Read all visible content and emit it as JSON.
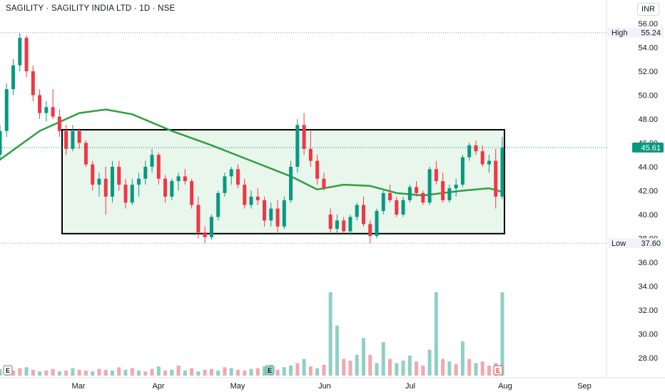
{
  "header": {
    "title": "SAGILITY · SAGILITY INDIA LTD · 1D · NSE",
    "currency": "INR"
  },
  "colors": {
    "up": "#089981",
    "down": "#f23645",
    "ma": "#2ea043",
    "range_fill": "#e9f6ec",
    "range_border": "#000000",
    "vol_up": "#8fd0c6",
    "vol_down": "#f3a7ad",
    "last_price_bg": "#089981"
  },
  "chart_data": {
    "type": "candlestick",
    "ylim": [
      26.8,
      56.6
    ],
    "y_ticks": [
      "56.00",
      "54.00",
      "52.00",
      "50.00",
      "48.00",
      "46.00",
      "44.00",
      "42.00",
      "40.00",
      "38.00",
      "36.00",
      "34.00",
      "32.00",
      "30.00",
      "28.00"
    ],
    "x_labels": [
      "Mar",
      "Apr",
      "May",
      "Jun",
      "Jul",
      "Aug",
      "Sep"
    ],
    "high": {
      "label": "High",
      "value": "55.24"
    },
    "low": {
      "label": "Low",
      "value": "37.60"
    },
    "last_price": "45.61",
    "range_box": {
      "low": 38.4,
      "high": 47.1
    },
    "events": [
      "E",
      "E",
      "E"
    ],
    "candles": [
      [
        45.0,
        47.5,
        44.5,
        47.0
      ],
      [
        47.0,
        51.0,
        46.5,
        50.5
      ],
      [
        50.5,
        53.0,
        50.0,
        52.5
      ],
      [
        52.5,
        55.2,
        52.0,
        54.8
      ],
      [
        54.8,
        55.0,
        51.5,
        52.0
      ],
      [
        52.0,
        52.5,
        49.5,
        50.0
      ],
      [
        50.0,
        50.5,
        48.0,
        48.5
      ],
      [
        48.5,
        49.5,
        47.8,
        49.0
      ],
      [
        49.0,
        50.5,
        48.0,
        48.2
      ],
      [
        48.2,
        48.8,
        46.5,
        47.0
      ],
      [
        47.0,
        47.5,
        45.0,
        45.5
      ],
      [
        45.5,
        47.5,
        45.3,
        47.0
      ],
      [
        47.0,
        47.2,
        45.5,
        46.0
      ],
      [
        46.0,
        46.2,
        44.0,
        44.2
      ],
      [
        44.2,
        44.5,
        42.0,
        42.5
      ],
      [
        42.5,
        43.5,
        41.5,
        43.0
      ],
      [
        43.0,
        44.0,
        40.0,
        41.5
      ],
      [
        41.5,
        44.5,
        41.0,
        44.0
      ],
      [
        44.0,
        44.5,
        42.0,
        42.5
      ],
      [
        42.5,
        43.0,
        40.5,
        41.0
      ],
      [
        41.0,
        43.0,
        40.8,
        42.5
      ],
      [
        42.5,
        43.5,
        41.5,
        43.0
      ],
      [
        43.0,
        44.5,
        42.5,
        44.0
      ],
      [
        44.0,
        45.5,
        43.5,
        45.0
      ],
      [
        45.0,
        45.2,
        42.5,
        43.0
      ],
      [
        43.0,
        43.3,
        41.0,
        41.5
      ],
      [
        41.5,
        43.0,
        41.2,
        42.8
      ],
      [
        42.8,
        43.5,
        42.0,
        43.2
      ],
      [
        43.2,
        43.8,
        42.5,
        42.8
      ],
      [
        42.8,
        43.0,
        40.5,
        40.8
      ],
      [
        40.8,
        41.5,
        38.0,
        38.5
      ],
      [
        38.5,
        39.0,
        37.6,
        38.1
      ],
      [
        38.1,
        40.0,
        37.9,
        39.8
      ],
      [
        39.8,
        42.0,
        39.5,
        41.8
      ],
      [
        41.8,
        43.5,
        41.5,
        43.2
      ],
      [
        43.2,
        44.0,
        42.5,
        43.8
      ],
      [
        43.8,
        44.2,
        42.2,
        42.5
      ],
      [
        42.5,
        43.0,
        40.5,
        40.8
      ],
      [
        40.8,
        42.0,
        40.5,
        41.5
      ],
      [
        41.5,
        42.2,
        40.8,
        41.2
      ],
      [
        41.2,
        41.5,
        39.0,
        39.5
      ],
      [
        39.5,
        41.0,
        39.0,
        40.5
      ],
      [
        40.5,
        41.2,
        38.5,
        39.0
      ],
      [
        39.0,
        41.5,
        38.8,
        41.2
      ],
      [
        41.2,
        44.5,
        41.0,
        44.0
      ],
      [
        44.0,
        48.0,
        43.5,
        47.5
      ],
      [
        47.5,
        48.5,
        45.0,
        45.5
      ],
      [
        45.5,
        47.0,
        44.0,
        44.5
      ],
      [
        44.5,
        45.0,
        42.5,
        43.0
      ],
      [
        43.0,
        43.5,
        42.0,
        42.2
      ],
      [
        40.0,
        40.5,
        38.5,
        38.8
      ],
      [
        38.8,
        40.0,
        38.5,
        39.5
      ],
      [
        39.5,
        39.8,
        38.4,
        38.6
      ],
      [
        38.6,
        40.0,
        38.3,
        39.8
      ],
      [
        39.8,
        41.0,
        39.5,
        40.8
      ],
      [
        40.8,
        41.5,
        39.0,
        39.2
      ],
      [
        39.2,
        39.5,
        37.6,
        38.2
      ],
      [
        38.2,
        40.5,
        38.0,
        40.3
      ],
      [
        40.3,
        42.0,
        40.0,
        41.8
      ],
      [
        41.8,
        42.5,
        41.0,
        41.2
      ],
      [
        41.2,
        41.5,
        39.8,
        40.0
      ],
      [
        40.0,
        41.5,
        39.8,
        41.2
      ],
      [
        41.2,
        42.5,
        41.0,
        42.3
      ],
      [
        42.3,
        42.8,
        41.5,
        41.8
      ],
      [
        41.8,
        42.0,
        40.8,
        41.0
      ],
      [
        41.0,
        44.0,
        40.8,
        43.8
      ],
      [
        43.8,
        44.5,
        42.5,
        42.8
      ],
      [
        42.8,
        43.5,
        41.0,
        41.2
      ],
      [
        41.2,
        42.5,
        41.0,
        42.2
      ],
      [
        42.2,
        43.0,
        41.5,
        42.5
      ],
      [
        42.5,
        45.0,
        42.3,
        44.8
      ],
      [
        44.8,
        46.0,
        44.5,
        45.8
      ],
      [
        45.8,
        46.2,
        45.0,
        45.3
      ],
      [
        45.3,
        45.8,
        44.0,
        44.2
      ],
      [
        44.2,
        45.0,
        43.5,
        44.5
      ],
      [
        44.5,
        45.5,
        40.5,
        41.5
      ],
      [
        41.5,
        46.5,
        41.3,
        45.6
      ]
    ],
    "volumes": [
      [
        0.8,
        1
      ],
      [
        1.2,
        1
      ],
      [
        0.6,
        0
      ],
      [
        0.9,
        0
      ],
      [
        1.0,
        1
      ],
      [
        0.7,
        0
      ],
      [
        0.5,
        1
      ],
      [
        0.6,
        0
      ],
      [
        0.8,
        0
      ],
      [
        0.5,
        1
      ],
      [
        0.6,
        0
      ],
      [
        0.9,
        1
      ],
      [
        0.7,
        0
      ],
      [
        0.6,
        0
      ],
      [
        0.5,
        1
      ],
      [
        0.8,
        0
      ],
      [
        0.7,
        0
      ],
      [
        0.6,
        1
      ],
      [
        1.0,
        0
      ],
      [
        0.7,
        1
      ],
      [
        0.9,
        0
      ],
      [
        0.6,
        1
      ],
      [
        0.5,
        0
      ],
      [
        0.8,
        0
      ],
      [
        1.1,
        1
      ],
      [
        0.6,
        0
      ],
      [
        0.7,
        1
      ],
      [
        1.2,
        0
      ],
      [
        0.6,
        1
      ],
      [
        0.9,
        0
      ],
      [
        0.5,
        1
      ],
      [
        0.7,
        0
      ],
      [
        0.8,
        0
      ],
      [
        0.6,
        1
      ],
      [
        1.0,
        0
      ],
      [
        0.9,
        1
      ],
      [
        0.7,
        0
      ],
      [
        0.6,
        0
      ],
      [
        0.8,
        1
      ],
      [
        0.9,
        0
      ],
      [
        1.1,
        1
      ],
      [
        1.3,
        0
      ],
      [
        0.7,
        0
      ],
      [
        1.0,
        1
      ],
      [
        1.2,
        1
      ],
      [
        1.5,
        0
      ],
      [
        2.0,
        1
      ],
      [
        1.1,
        0
      ],
      [
        0.9,
        1
      ],
      [
        1.3,
        0
      ],
      [
        10.0,
        1
      ],
      [
        6.0,
        1
      ],
      [
        2.0,
        0
      ],
      [
        1.8,
        0
      ],
      [
        2.5,
        1
      ],
      [
        4.5,
        1
      ],
      [
        2.5,
        0
      ],
      [
        1.5,
        1
      ],
      [
        4.0,
        1
      ],
      [
        2.0,
        0
      ],
      [
        1.5,
        1
      ],
      [
        1.8,
        1
      ],
      [
        2.4,
        1
      ],
      [
        1.7,
        0
      ],
      [
        1.2,
        0
      ],
      [
        3.1,
        1
      ],
      [
        10.0,
        1
      ],
      [
        2.0,
        0
      ],
      [
        1.7,
        1
      ],
      [
        1.4,
        0
      ],
      [
        4.1,
        1
      ],
      [
        2.0,
        0
      ],
      [
        1.5,
        1
      ],
      [
        1.7,
        0
      ],
      [
        1.2,
        0
      ],
      [
        1.5,
        1
      ],
      [
        10.0,
        1
      ]
    ],
    "ma": [
      [
        0,
        44.6
      ],
      [
        6,
        47.0
      ],
      [
        12,
        48.5
      ],
      [
        16,
        48.8
      ],
      [
        20,
        48.4
      ],
      [
        26,
        47.0
      ],
      [
        32,
        45.8
      ],
      [
        38,
        44.5
      ],
      [
        44,
        43.2
      ],
      [
        48,
        42.1
      ],
      [
        52,
        42.5
      ],
      [
        56,
        42.4
      ],
      [
        60,
        41.8
      ],
      [
        64,
        41.6
      ],
      [
        70,
        42.0
      ],
      [
        74,
        42.2
      ],
      [
        76,
        41.9
      ]
    ]
  }
}
